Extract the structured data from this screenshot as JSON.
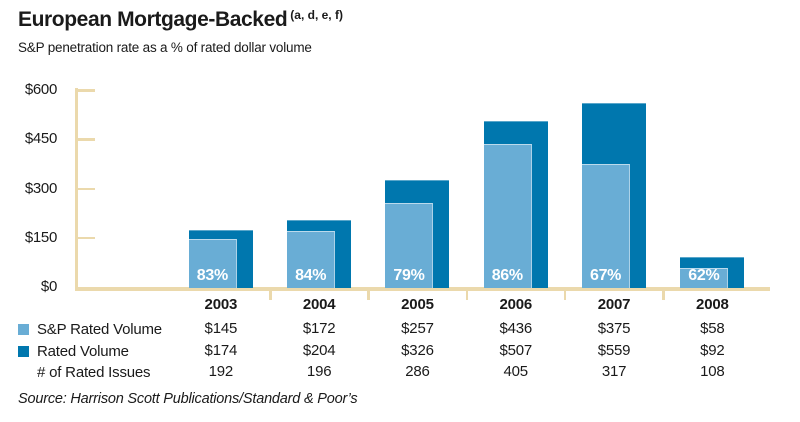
{
  "header": {
    "title": "European Mortgage-Backed",
    "title_superscript": "(a, d, e, f)",
    "subtitle": "S&P penetration rate as a % of rated dollar volume"
  },
  "chart_data": {
    "type": "bar",
    "title": "European Mortgage-Backed (a, d, e, f)",
    "subtitle": "S&P penetration rate as a % of rated dollar volume",
    "categories": [
      "2003",
      "2004",
      "2005",
      "2006",
      "2007",
      "2008"
    ],
    "series": [
      {
        "name": "Rated Volume",
        "color": "#0077AE",
        "values": [
          174,
          204,
          326,
          507,
          559,
          92
        ]
      },
      {
        "name": "S&P Rated Volume",
        "color": "#69ADD5",
        "values": [
          145,
          172,
          257,
          436,
          375,
          58
        ]
      }
    ],
    "bar_labels": [
      "83%",
      "84%",
      "79%",
      "86%",
      "67%",
      "62%"
    ],
    "extra_rows": [
      {
        "name": "# of Rated Issues",
        "values": [
          192,
          196,
          286,
          405,
          317,
          108
        ]
      }
    ],
    "y_ticks": {
      "labels": [
        "$0",
        "$150",
        "$300",
        "$450",
        "$600"
      ],
      "values": [
        0,
        150,
        300,
        450,
        600
      ]
    },
    "ylim": [
      0,
      600
    ],
    "grid": false,
    "legend_position": "bottom-left-table",
    "axis_color": "#EBD9AC"
  },
  "table": {
    "years": [
      "2003",
      "2004",
      "2005",
      "2006",
      "2007",
      "2008"
    ],
    "rows": [
      {
        "label": "S&P Rated Volume",
        "swatch": "light",
        "values": [
          "$145",
          "$172",
          "$257",
          "$436",
          "$375",
          "$58"
        ]
      },
      {
        "label": "Rated Volume",
        "swatch": "dark",
        "values": [
          "$174",
          "$204",
          "$326",
          "$507",
          "$559",
          "$92"
        ]
      },
      {
        "label": "# of Rated Issues",
        "swatch": null,
        "values": [
          "192",
          "196",
          "286",
          "405",
          "317",
          "108"
        ]
      }
    ]
  },
  "source": "Source: Harrison Scott Publications/Standard & Poor’s",
  "colors": {
    "bar_light": "#69ADD5",
    "bar_dark": "#0077AE",
    "axis_tan": "#EBD9AC",
    "text": "#1a1a1a",
    "pct_text": "#ffffff"
  }
}
